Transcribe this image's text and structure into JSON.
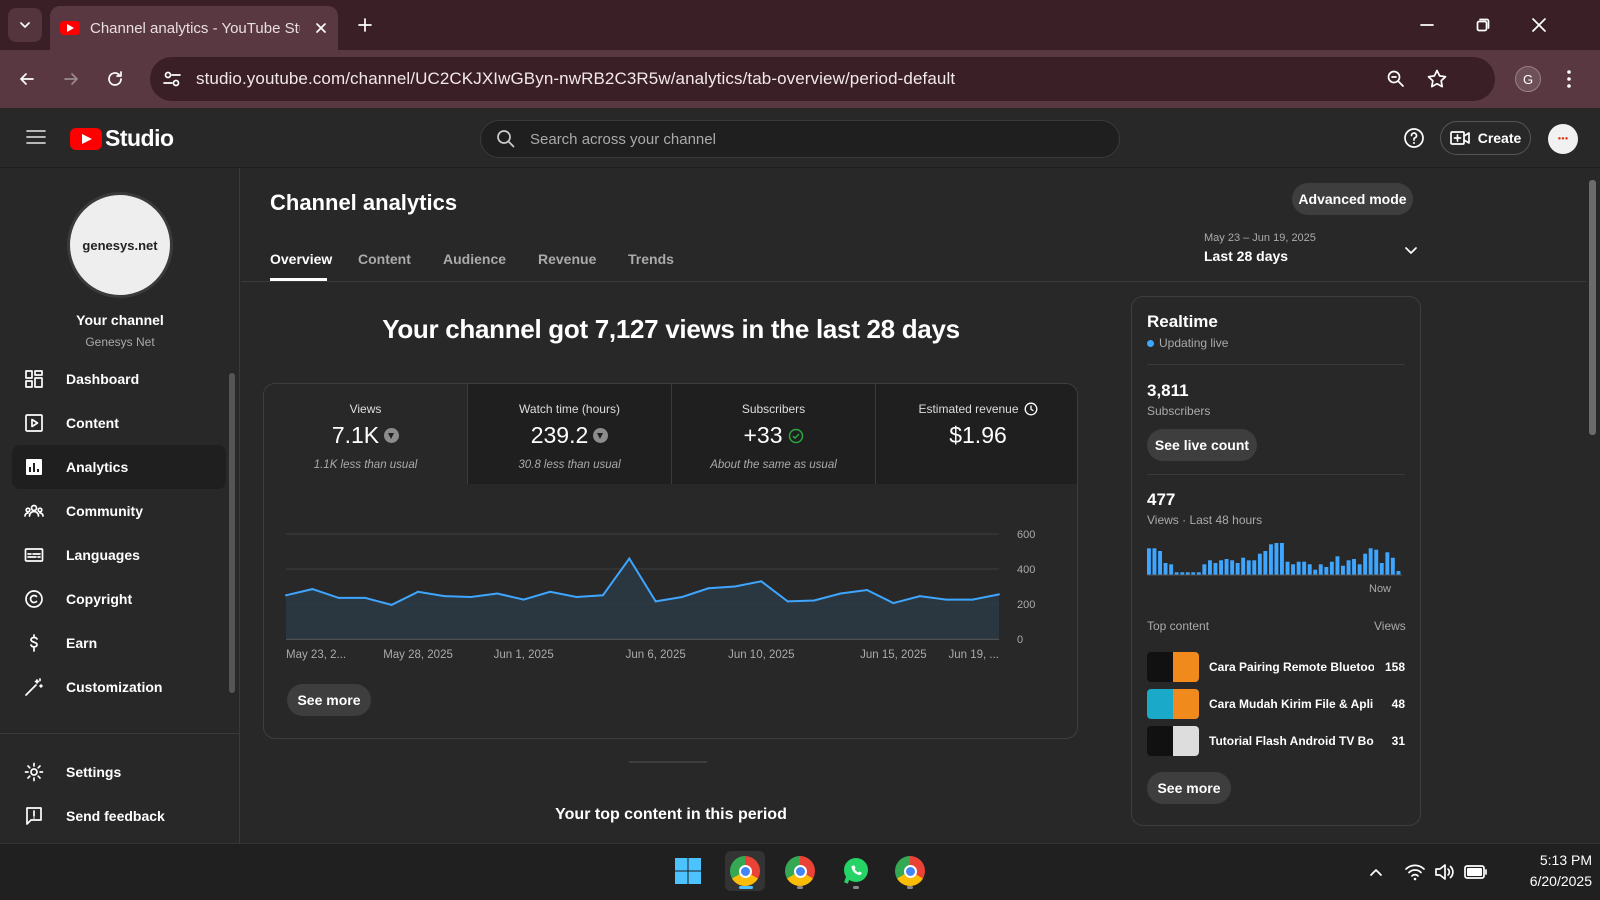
{
  "browser": {
    "tab_title": "Channel analytics - YouTube Studio",
    "url": "studio.youtube.com/channel/UC2CKJXIwGByn-nwRB2C3R5w/analytics/tab-overview/period-default",
    "profile_initial": "G"
  },
  "studio": {
    "logo_text": "Studio",
    "search_placeholder": "Search across your channel",
    "create_label": "Create"
  },
  "sidebar": {
    "avatar_text": "genesys.net",
    "your_channel": "Your channel",
    "channel_name": "Genesys Net",
    "items": [
      {
        "label": "Dashboard",
        "icon": "dashboard-icon"
      },
      {
        "label": "Content",
        "icon": "content-icon"
      },
      {
        "label": "Analytics",
        "icon": "analytics-icon",
        "active": true
      },
      {
        "label": "Community",
        "icon": "community-icon"
      },
      {
        "label": "Languages",
        "icon": "languages-icon"
      },
      {
        "label": "Copyright",
        "icon": "copyright-icon"
      },
      {
        "label": "Earn",
        "icon": "earn-icon"
      },
      {
        "label": "Customization",
        "icon": "customization-icon"
      }
    ],
    "bottom_items": [
      {
        "label": "Settings",
        "icon": "settings-icon"
      },
      {
        "label": "Send feedback",
        "icon": "feedback-icon"
      }
    ]
  },
  "main": {
    "title": "Channel analytics",
    "advanced_mode": "Advanced mode",
    "tabs": [
      "Overview",
      "Content",
      "Audience",
      "Revenue",
      "Trends"
    ],
    "active_tab": "Overview",
    "date_range": {
      "dates": "May 23 – Jun 19, 2025",
      "label": "Last 28 days"
    },
    "headline": "Your channel got 7,127 views in the last 28 days",
    "metrics": [
      {
        "label": "Views",
        "value": "7.1K",
        "sub": "1.1K less than usual",
        "status": "down"
      },
      {
        "label": "Watch time (hours)",
        "value": "239.2",
        "sub": "30.8 less than usual",
        "status": "down"
      },
      {
        "label": "Subscribers",
        "value": "+33",
        "sub": "About the same as usual",
        "status": "same"
      },
      {
        "label": "Estimated revenue",
        "value": "$1.96",
        "sub": "",
        "status": "info"
      }
    ],
    "see_more": "See more",
    "top_content_title": "Your top content in this period"
  },
  "chart_data": {
    "type": "area",
    "title": "",
    "xlabel": "",
    "ylabel": "",
    "ylim": [
      0,
      600
    ],
    "yticks": [
      "600",
      "400",
      "200",
      "0"
    ],
    "x_tick_labels": [
      "May 23, 2...",
      "May 28, 2025",
      "Jun 1, 2025",
      "Jun 6, 2025",
      "Jun 10, 2025",
      "Jun 15, 2025",
      "Jun 19, ..."
    ],
    "x": [
      "May 23",
      "May 24",
      "May 25",
      "May 26",
      "May 27",
      "May 28",
      "May 29",
      "May 30",
      "May 31",
      "Jun 1",
      "Jun 2",
      "Jun 3",
      "Jun 4",
      "Jun 5",
      "Jun 6",
      "Jun 7",
      "Jun 8",
      "Jun 9",
      "Jun 10",
      "Jun 11",
      "Jun 12",
      "Jun 13",
      "Jun 14",
      "Jun 15",
      "Jun 16",
      "Jun 17",
      "Jun 18",
      "Jun 19"
    ],
    "series": [
      {
        "values": [
          250,
          285,
          235,
          235,
          195,
          270,
          245,
          240,
          260,
          225,
          270,
          240,
          250,
          460,
          215,
          240,
          290,
          300,
          330,
          215,
          220,
          260,
          280,
          205,
          245,
          225,
          225,
          255
        ]
      }
    ],
    "color": "#3ea6ff"
  },
  "realtime": {
    "title": "Realtime",
    "status": "Updating live",
    "subscribers": "3,811",
    "subscribers_label": "Subscribers",
    "live_count_btn": "See live count",
    "views": "477",
    "views_label": "Views · Last 48 hours",
    "now_label": "Now",
    "hourly_views": [
      20,
      20,
      18,
      9,
      8,
      2,
      2,
      2,
      2,
      2,
      8,
      11,
      9,
      11,
      12,
      11,
      9,
      13,
      11,
      11,
      16,
      18,
      23,
      24,
      24,
      10,
      8,
      10,
      10,
      8,
      4,
      8,
      6,
      10,
      14,
      7,
      11,
      12,
      8,
      16,
      20,
      19,
      9,
      17,
      13,
      3
    ],
    "top_content_header": "Top content",
    "views_header": "Views",
    "top_content": [
      {
        "title": "Cara Pairing Remote Bluetooth...",
        "views": "158"
      },
      {
        "title": "Cara Mudah Kirim File & Aplikasi...",
        "views": "48"
      },
      {
        "title": "Tutorial Flash Android TV Box...",
        "views": "31"
      }
    ],
    "see_more": "See more"
  },
  "taskbar": {
    "time": "5:13 PM",
    "date": "6/20/2025"
  }
}
